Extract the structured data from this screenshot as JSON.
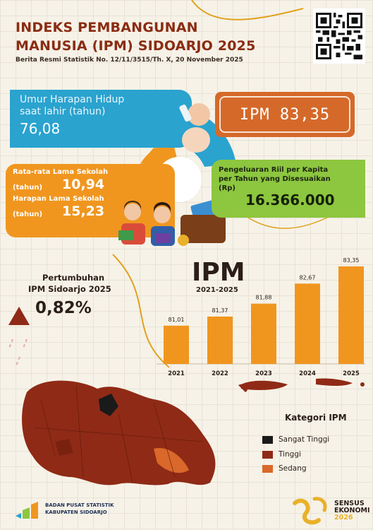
{
  "header": {
    "title_line1": "INDEKS PEMBANGUNAN",
    "title_line2": "MANUSIA (IPM) SIDOARJO 2025",
    "subtitle": "Berita Resmi Statistik No. 12/11/3515/Th. X, 20 November 2025"
  },
  "uhh": {
    "label_line1": "Umur Harapan Hidup",
    "label_line2": "saat lahir (tahun)",
    "value": "76,08"
  },
  "ipm_badge": "IPM 83,35",
  "school": {
    "rls_label_line1": "Rata-rata Lama Sekolah",
    "rls_label_line2": "(tahun)",
    "rls_value": "10,94",
    "hls_label_line1": "Harapan Lama Sekolah",
    "hls_label_line2": "(tahun)",
    "hls_value": "15,23"
  },
  "spending": {
    "label_line1": "Pengeluaran Riil per Kapita",
    "label_line2": "per Tahun yang Disesuaikan",
    "label_line3": "(Rp)",
    "value": "16.366.000"
  },
  "growth": {
    "label_line1": "Pertumbuhan",
    "label_line2": "IPM Sidoarjo 2025",
    "value": "0,82%"
  },
  "chart_data": {
    "type": "bar",
    "title": "IPM",
    "subtitle": "2021-2025",
    "categories": [
      "2021",
      "2022",
      "2023",
      "2024",
      "2025"
    ],
    "values": [
      81.01,
      81.37,
      81.88,
      82.67,
      83.35
    ],
    "labels": [
      "81,01",
      "81,37",
      "81,88",
      "82,67",
      "83,35"
    ],
    "ylim": [
      79.5,
      83.6
    ],
    "color": "#f0961f"
  },
  "legend": {
    "title": "Kategori IPM",
    "items": [
      {
        "label": "Sangat Tinggi",
        "color": "#1a1a1a"
      },
      {
        "label": "Tinggi",
        "color": "#8f2a16"
      },
      {
        "label": "Sedang",
        "color": "#d9682a"
      }
    ]
  },
  "footer": {
    "org_line1": "BADAN PUSAT STATISTIK",
    "org_line2": "KABUPATEN SIDOARJO",
    "sensus_line1": "SENSUS",
    "sensus_line2": "EKONOMI",
    "sensus_line3": "2026"
  },
  "colors": {
    "title": "#8a2c12",
    "uhh": "#2aa3cf",
    "ipm": "#d5692a",
    "school": "#f0961f",
    "spending": "#8dc63f",
    "growth_arrow": "#8f2a16"
  }
}
